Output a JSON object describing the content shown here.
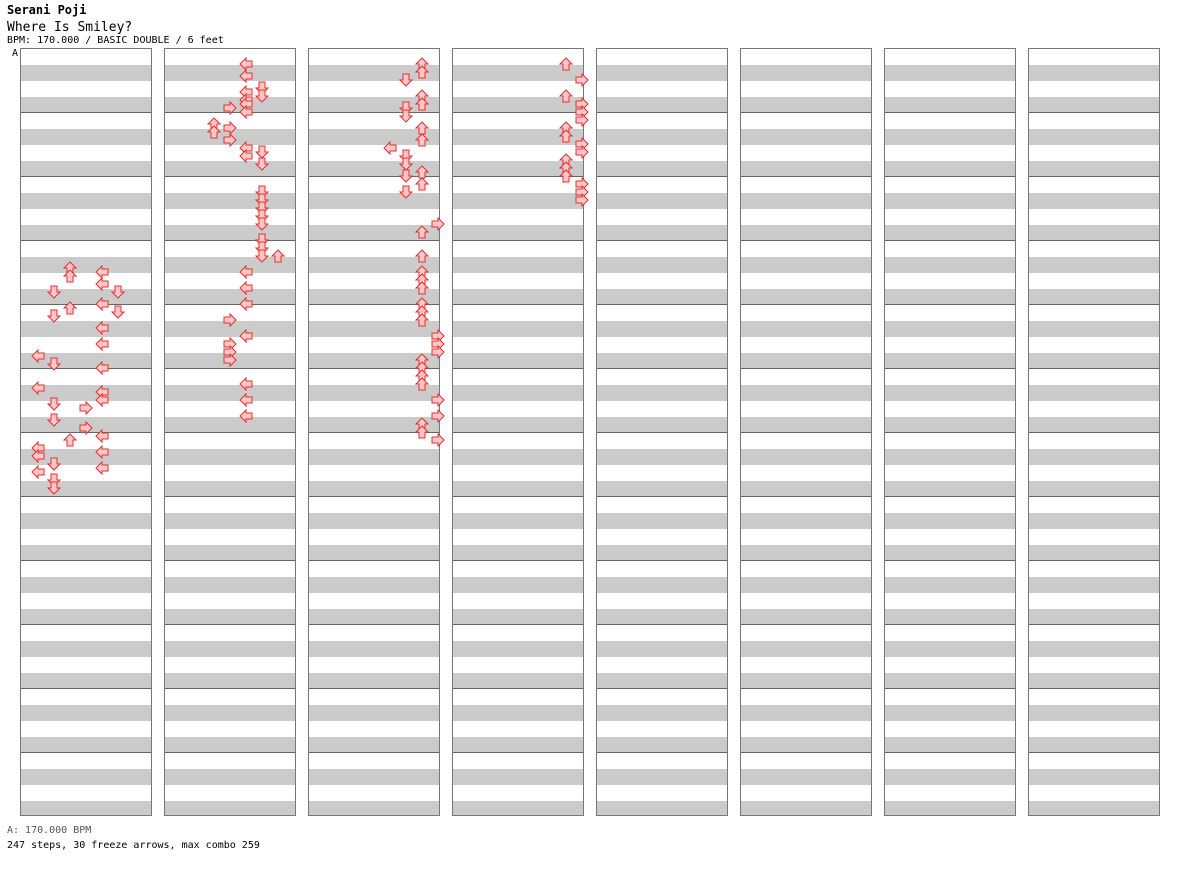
{
  "header": {
    "artist": "Serani Poji",
    "song": "Where Is Smiley?",
    "meta": "BPM: 170.000 / BASIC DOUBLE / 6 feet",
    "marker": "A"
  },
  "footer": {
    "bpm_line": "A: 170.000 BPM",
    "stats": "247 steps, 30 freeze arrows, max combo 259"
  },
  "colors": {
    "arrow_fill": "#ffc8c8",
    "arrow_stroke": "#e03030",
    "freeze_fill": "#c8ffc8",
    "freeze_stroke": "#30a030",
    "row_shade": "#cbcbcb",
    "bpm_marker": "#2f6fb5"
  },
  "chart": {
    "columns": 8,
    "measures_per_column": 12,
    "lanes": [
      "L",
      "D",
      "U",
      "R",
      "L",
      "D",
      "U",
      "R"
    ],
    "notes": [
      [
        0,
        13.25,
        2
      ],
      [
        0,
        13.75,
        2
      ],
      [
        0,
        14.75,
        1
      ],
      [
        0,
        15.75,
        2
      ],
      [
        0,
        16.25,
        1
      ],
      [
        0,
        18.75,
        0
      ],
      [
        0,
        19.25,
        1
      ],
      [
        0,
        20.75,
        0
      ],
      [
        0,
        21.75,
        1
      ],
      [
        0,
        22.75,
        1
      ],
      [
        0,
        23.25,
        3
      ],
      [
        0,
        24,
        2
      ],
      [
        0,
        24.5,
        0
      ],
      [
        0,
        25,
        0
      ],
      [
        0,
        25.5,
        1
      ],
      [
        0,
        26,
        0
      ],
      [
        0,
        26.5,
        1
      ],
      [
        0,
        27,
        1
      ],
      [
        0,
        13.5,
        4
      ],
      [
        0,
        14.25,
        4
      ],
      [
        0,
        14.75,
        5
      ],
      [
        0,
        15.5,
        4
      ],
      [
        0,
        16.0,
        5
      ],
      [
        0,
        17,
        4
      ],
      [
        0,
        18,
        4
      ],
      [
        0,
        19.5,
        4
      ],
      [
        0,
        21.0,
        4
      ],
      [
        0,
        21.5,
        4
      ],
      [
        0,
        22,
        3
      ],
      [
        0,
        23.75,
        4
      ],
      [
        0,
        24.75,
        4
      ],
      [
        0,
        25.75,
        4
      ],
      [
        1,
        0.5,
        4
      ],
      [
        1,
        1.25,
        4
      ],
      [
        1,
        2.0,
        5
      ],
      [
        1,
        2.25,
        4
      ],
      [
        1,
        2.5,
        5
      ],
      [
        1,
        2.75,
        4
      ],
      [
        1,
        3.0,
        4
      ],
      [
        1,
        3.25,
        3
      ],
      [
        1,
        3.5,
        4
      ],
      [
        1,
        4.25,
        2
      ],
      [
        1,
        4.5,
        3
      ],
      [
        1,
        4.75,
        2
      ],
      [
        1,
        5.25,
        3
      ],
      [
        1,
        5.75,
        4
      ],
      [
        1,
        6.0,
        5
      ],
      [
        1,
        6.25,
        4
      ],
      [
        1,
        6.75,
        5
      ],
      [
        1,
        8.5,
        5
      ],
      [
        1,
        9.0,
        5
      ],
      [
        1,
        9.5,
        5
      ],
      [
        1,
        10.0,
        5
      ],
      [
        1,
        10.5,
        5
      ],
      [
        1,
        11.5,
        5
      ],
      [
        1,
        12.0,
        5
      ],
      [
        1,
        12.5,
        5
      ],
      [
        1,
        12.5,
        6
      ],
      [
        1,
        13.5,
        4
      ],
      [
        1,
        14.5,
        4
      ],
      [
        1,
        15.5,
        4
      ],
      [
        1,
        16.5,
        3
      ],
      [
        1,
        17.5,
        4
      ],
      [
        1,
        18.0,
        3
      ],
      [
        1,
        18.5,
        3
      ],
      [
        1,
        19.0,
        3
      ],
      [
        1,
        20.5,
        4
      ],
      [
        1,
        21.5,
        4
      ],
      [
        1,
        22.5,
        4
      ],
      [
        2,
        0.5,
        6
      ],
      [
        2,
        1,
        6
      ],
      [
        2,
        1.5,
        5
      ],
      [
        2,
        2.5,
        6
      ],
      [
        2,
        3.0,
        6
      ],
      [
        2,
        3.25,
        5
      ],
      [
        2,
        3.75,
        5
      ],
      [
        2,
        4.5,
        6
      ],
      [
        2,
        5.25,
        6
      ],
      [
        2,
        5.75,
        4
      ],
      [
        2,
        6.25,
        5
      ],
      [
        2,
        6.75,
        5
      ],
      [
        2,
        7.25,
        6
      ],
      [
        2,
        7.5,
        5
      ],
      [
        2,
        8.0,
        6
      ],
      [
        2,
        8.5,
        5
      ],
      [
        2,
        10.5,
        7
      ],
      [
        2,
        11.0,
        6
      ],
      [
        2,
        12.5,
        6
      ],
      [
        2,
        13.5,
        6
      ],
      [
        2,
        14.0,
        6
      ],
      [
        2,
        14.5,
        6
      ],
      [
        2,
        15.5,
        6
      ],
      [
        2,
        16.0,
        6
      ],
      [
        2,
        16.5,
        6
      ],
      [
        2,
        17.5,
        7
      ],
      [
        2,
        18.0,
        7
      ],
      [
        2,
        18.5,
        7
      ],
      [
        2,
        19.0,
        6
      ],
      [
        2,
        19.5,
        6
      ],
      [
        2,
        20.0,
        6
      ],
      [
        2,
        20.5,
        6
      ],
      [
        2,
        21.5,
        7
      ],
      [
        2,
        22.5,
        7
      ],
      [
        2,
        23,
        6
      ],
      [
        2,
        23.5,
        6
      ],
      [
        2,
        24.0,
        7
      ],
      [
        3,
        0.5,
        6
      ],
      [
        3,
        1.5,
        7
      ],
      [
        3,
        2.5,
        6
      ],
      [
        3,
        3.0,
        7
      ],
      [
        3,
        3.5,
        7
      ],
      [
        3,
        4.0,
        7
      ],
      [
        3,
        4.5,
        6
      ],
      [
        3,
        5.0,
        6
      ],
      [
        3,
        5.5,
        7
      ],
      [
        3,
        6.0,
        7
      ],
      [
        3,
        6.5,
        6
      ],
      [
        3,
        7.0,
        6
      ],
      [
        3,
        7.5,
        6
      ],
      [
        3,
        8.0,
        7
      ],
      [
        3,
        8.5,
        7
      ],
      [
        3,
        9.0,
        7
      ]
    ]
  }
}
